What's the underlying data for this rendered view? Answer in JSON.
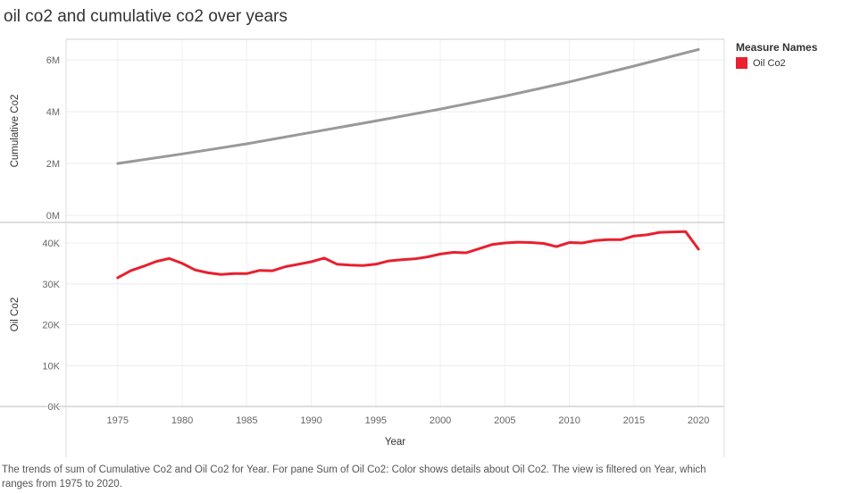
{
  "title": "oil co2 and cumulative co2 over years",
  "legend": {
    "title": "Measure Names",
    "items": [
      {
        "label": "Oil Co2",
        "color": "#e8202f"
      }
    ]
  },
  "caption": "The trends of sum of Cumulative Co2 and Oil Co2 for Year.  For pane Sum of Oil Co2:  Color shows details about Oil Co2. The view is filtered on Year, which ranges from 1975 to 2020.",
  "chart_data": {
    "type": "line",
    "xlabel": "Year",
    "xlim": [
      1971,
      2022
    ],
    "x_ticks": [
      1975,
      1980,
      1985,
      1990,
      1995,
      2000,
      2005,
      2010,
      2015,
      2020
    ],
    "panes": [
      {
        "ylabel": "Cumulative Co2",
        "ylim": [
          0,
          6000000
        ],
        "y_ticks": [
          0,
          2000000,
          4000000,
          6000000
        ],
        "y_tick_labels": [
          "0M",
          "2M",
          "4M",
          "6M"
        ],
        "series": [
          {
            "color": "#999999",
            "x": [
              1975,
              1980,
              1985,
              1990,
              1995,
              2000,
              2005,
              2010,
              2015,
              2020
            ],
            "y": [
              2000000,
              2370000,
              2760000,
              3200000,
              3640000,
              4100000,
              4600000,
              5150000,
              5760000,
              6400000
            ]
          }
        ]
      },
      {
        "ylabel": "Oil Co2",
        "ylim": [
          0,
          45000
        ],
        "y_ticks": [
          0,
          10000,
          20000,
          30000,
          40000
        ],
        "y_tick_labels": [
          "0K",
          "10K",
          "20K",
          "30K",
          "40K"
        ],
        "series": [
          {
            "name": "Oil Co2",
            "color": "#e8202f",
            "x": [
              1975,
              1976,
              1977,
              1978,
              1979,
              1980,
              1981,
              1982,
              1983,
              1984,
              1985,
              1986,
              1987,
              1988,
              1989,
              1990,
              1991,
              1992,
              1993,
              1994,
              1995,
              1996,
              1997,
              1998,
              1999,
              2000,
              2001,
              2002,
              2003,
              2004,
              2005,
              2006,
              2007,
              2008,
              2009,
              2010,
              2011,
              2012,
              2013,
              2014,
              2015,
              2016,
              2017,
              2018,
              2019,
              2020
            ],
            "y": [
              31500,
              33200,
              34300,
              35500,
              36200,
              35000,
              33400,
              32700,
              32300,
              32500,
              32500,
              33300,
              33200,
              34200,
              34800,
              35400,
              36300,
              34800,
              34600,
              34500,
              34800,
              35600,
              35900,
              36100,
              36600,
              37300,
              37700,
              37600,
              38600,
              39600,
              40000,
              40200,
              40100,
              39900,
              39100,
              40100,
              40000,
              40600,
              40800,
              40800,
              41700,
              42000,
              42600,
              42700,
              42800,
              38500
            ]
          }
        ]
      }
    ]
  }
}
